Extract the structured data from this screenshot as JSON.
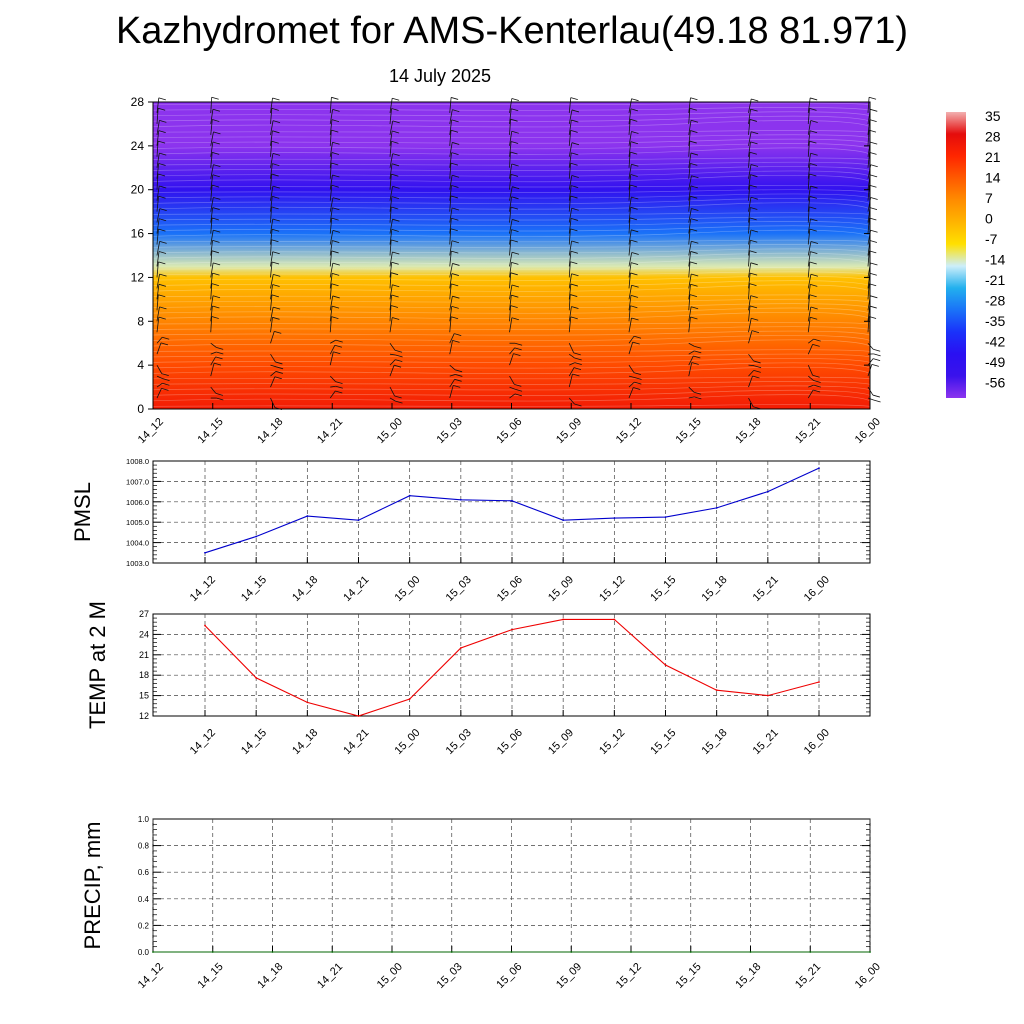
{
  "header": {
    "title": "Kazhydromet for AMS-Kenterlau(49.18 81.971)",
    "date": "14 July 2025"
  },
  "chart_data": [
    {
      "type": "heatmap",
      "name": "temperature-cross-section",
      "x": [
        "14_12",
        "14_15",
        "14_18",
        "14_21",
        "15_00",
        "15_03",
        "15_06",
        "15_09",
        "15_12",
        "15_15",
        "15_18",
        "15_21",
        "16_00"
      ],
      "yticks": [
        0,
        4,
        8,
        12,
        16,
        20,
        24,
        28
      ],
      "ylim": [
        0,
        28
      ],
      "colorbar": {
        "labels": [
          "35",
          "28",
          "21",
          "14",
          "7",
          "0",
          "-7",
          "-14",
          "-21",
          "-28",
          "-35",
          "-42",
          "-49",
          "-56"
        ],
        "colors": [
          "#f2b0b0",
          "#e40c0c",
          "#ff2600",
          "#ff5a00",
          "#ff8c00",
          "#ffb400",
          "#ffe000",
          "#cdeefa",
          "#22b0ee",
          "#1a72f8",
          "#1a32fa",
          "#2a10f2",
          "#3a12ec",
          "#8c34ee"
        ]
      },
      "level_profile": [
        {
          "y": 0,
          "value": 24
        },
        {
          "y": 4,
          "value": 16
        },
        {
          "y": 8,
          "value": 8
        },
        {
          "y": 12,
          "value": -2
        },
        {
          "y": 13,
          "value": -12
        },
        {
          "y": 16,
          "value": -28
        },
        {
          "y": 20,
          "value": -45
        },
        {
          "y": 24,
          "value": -56
        },
        {
          "y": 28,
          "value": -58
        }
      ]
    },
    {
      "type": "line",
      "name": "pmsl",
      "ylabel": "PMSL",
      "x": [
        "14_12",
        "14_15",
        "14_18",
        "14_21",
        "15_00",
        "15_03",
        "15_06",
        "15_09",
        "15_12",
        "15_15",
        "15_18",
        "15_21",
        "16_00"
      ],
      "yticks": [
        "1003.0",
        "1004.0",
        "1005.0",
        "1006.0",
        "1007.0",
        "1008.0"
      ],
      "ylim": [
        1003,
        1008
      ],
      "values": [
        1003.5,
        1004.3,
        1005.3,
        1005.1,
        1006.3,
        1006.1,
        1006.05,
        1005.1,
        1005.2,
        1005.25,
        1005.7,
        1006.5,
        1007.65
      ],
      "color": "#0000cc"
    },
    {
      "type": "line",
      "name": "temp-2m",
      "ylabel": "TEMP at 2 M",
      "x": [
        "14_12",
        "14_15",
        "14_18",
        "14_21",
        "15_00",
        "15_03",
        "15_06",
        "15_09",
        "15_12",
        "15_15",
        "15_18",
        "15_21",
        "16_00"
      ],
      "yticks": [
        "12",
        "15",
        "18",
        "21",
        "24",
        "27"
      ],
      "ylim": [
        12,
        27
      ],
      "values": [
        25.3,
        17.6,
        14.0,
        12.0,
        14.5,
        22.0,
        24.7,
        26.2,
        26.2,
        19.5,
        15.8,
        15.0,
        17.0
      ],
      "color": "#ee0000"
    },
    {
      "type": "line",
      "name": "precip",
      "ylabel": "PRECIP, mm",
      "x": [
        "14_12",
        "14_15",
        "14_18",
        "14_21",
        "15_00",
        "15_03",
        "15_06",
        "15_09",
        "15_12",
        "15_15",
        "15_18",
        "15_21",
        "16_00"
      ],
      "yticks": [
        "0.0",
        "0.2",
        "0.4",
        "0.6",
        "0.8",
        "1.0"
      ],
      "ylim": [
        0,
        1
      ],
      "values": [
        0,
        0,
        0,
        0,
        0,
        0,
        0,
        0,
        0,
        0,
        0,
        0,
        0
      ],
      "color": "#006600"
    }
  ]
}
